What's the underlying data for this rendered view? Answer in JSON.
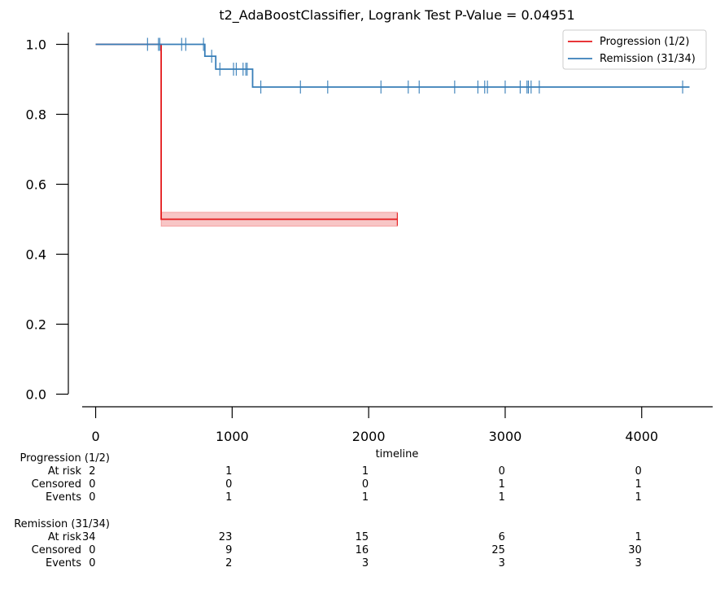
{
  "chart_data": {
    "type": "line",
    "title": "t2_AdaBoostClassifier, Logrank Test P-Value = 0.04951",
    "xlabel": "timeline",
    "ylabel": "",
    "xlim": [
      -200,
      4520
    ],
    "ylim": [
      -0.05,
      1.05
    ],
    "x_ticks": [
      0,
      1000,
      2000,
      3000,
      4000
    ],
    "y_ticks": [
      0.0,
      0.2,
      0.4,
      0.6,
      0.8,
      1.0
    ],
    "x_tick_labels": [
      "0",
      "1000",
      "2000",
      "3000",
      "4000"
    ],
    "y_tick_labels": [
      "0.0",
      "0.2",
      "0.4",
      "0.6",
      "0.8",
      "1.0"
    ],
    "legend_position": "top-right",
    "series": [
      {
        "name": "Progression (1/2)",
        "color": "#e41a1c",
        "steps": [
          [
            0,
            1.0
          ],
          [
            480,
            1.0
          ],
          [
            480,
            0.5
          ],
          [
            2210,
            0.5
          ]
        ],
        "ci_band": {
          "x_start": 480,
          "x_end": 2210,
          "lower": 0.48,
          "upper": 0.52
        },
        "censor_times": [
          2210
        ],
        "censor_values": [
          0.5
        ]
      },
      {
        "name": "Remission (31/34)",
        "color": "#377eb8",
        "steps": [
          [
            0,
            1.0
          ],
          [
            800,
            1.0
          ],
          [
            800,
            0.966
          ],
          [
            880,
            0.966
          ],
          [
            880,
            0.929
          ],
          [
            1150,
            0.929
          ],
          [
            1150,
            0.878
          ],
          [
            4350,
            0.878
          ]
        ],
        "censor_times": [
          380,
          460,
          470,
          630,
          660,
          790,
          850,
          910,
          1010,
          1030,
          1080,
          1100,
          1110,
          1210,
          1500,
          1700,
          2090,
          2290,
          2370,
          2630,
          2800,
          2850,
          2870,
          3000,
          3110,
          3160,
          3170,
          3190,
          3250,
          4300
        ],
        "censor_values": [
          1.0,
          1.0,
          1.0,
          1.0,
          1.0,
          1.0,
          0.966,
          0.929,
          0.929,
          0.929,
          0.929,
          0.929,
          0.929,
          0.878,
          0.878,
          0.878,
          0.878,
          0.878,
          0.878,
          0.878,
          0.878,
          0.878,
          0.878,
          0.878,
          0.878,
          0.878,
          0.878,
          0.878,
          0.878,
          0.878
        ]
      }
    ],
    "at_risk_table": {
      "times": [
        0,
        1000,
        2000,
        3000,
        4000
      ],
      "groups": [
        {
          "name": "Progression (1/2)",
          "rows": [
            {
              "label": "At risk",
              "values": [
                "2",
                "1",
                "1",
                "0",
                "0"
              ]
            },
            {
              "label": "Censored",
              "values": [
                "0",
                "0",
                "0",
                "1",
                "1"
              ]
            },
            {
              "label": "Events",
              "values": [
                "0",
                "1",
                "1",
                "1",
                "1"
              ]
            }
          ]
        },
        {
          "name": "Remission (31/34)",
          "rows": [
            {
              "label": "At risk",
              "values": [
                "34",
                "23",
                "15",
                "6",
                "1"
              ]
            },
            {
              "label": "Censored",
              "values": [
                "0",
                "9",
                "16",
                "25",
                "30"
              ]
            },
            {
              "label": "Events",
              "values": [
                "0",
                "2",
                "3",
                "3",
                "3"
              ]
            }
          ]
        }
      ]
    }
  }
}
